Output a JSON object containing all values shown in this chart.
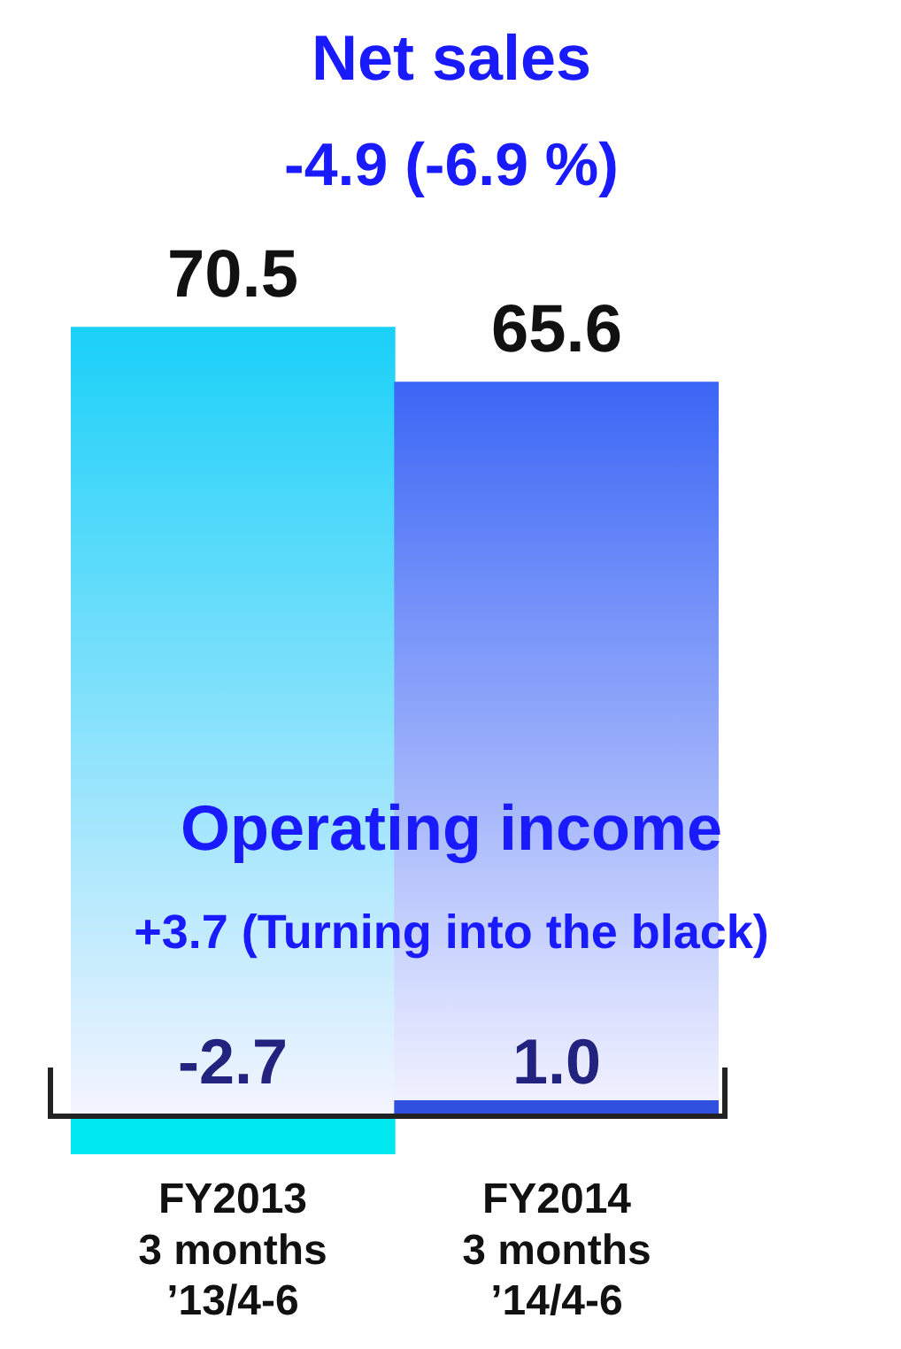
{
  "chart_data": [
    {
      "type": "bar",
      "title": "Net sales",
      "subtitle": "-4.9 (-6.9 %)",
      "categories": [
        "FY2013\n3 months\n’13/4-6",
        "FY2014\n3 months\n’14/4-6"
      ],
      "colors": [
        "#1ad0f8",
        "#3b66f5"
      ],
      "values": [
        70.5,
        65.6
      ],
      "value_labels": [
        "70.5",
        "65.6"
      ],
      "legend": false,
      "grid": false,
      "tick_labels": "x"
    },
    {
      "type": "bar",
      "title": "Operating income",
      "subtitle": "+3.7 (Turning into the black)",
      "categories": [
        null,
        null
      ],
      "colors": [
        "#00e8f0",
        "#3050e0"
      ],
      "values": [
        -2.7,
        1.0
      ],
      "value_labels": [
        "-2.7",
        "1.0"
      ],
      "legend": false,
      "grid": false,
      "tick_labels": "x"
    }
  ]
}
